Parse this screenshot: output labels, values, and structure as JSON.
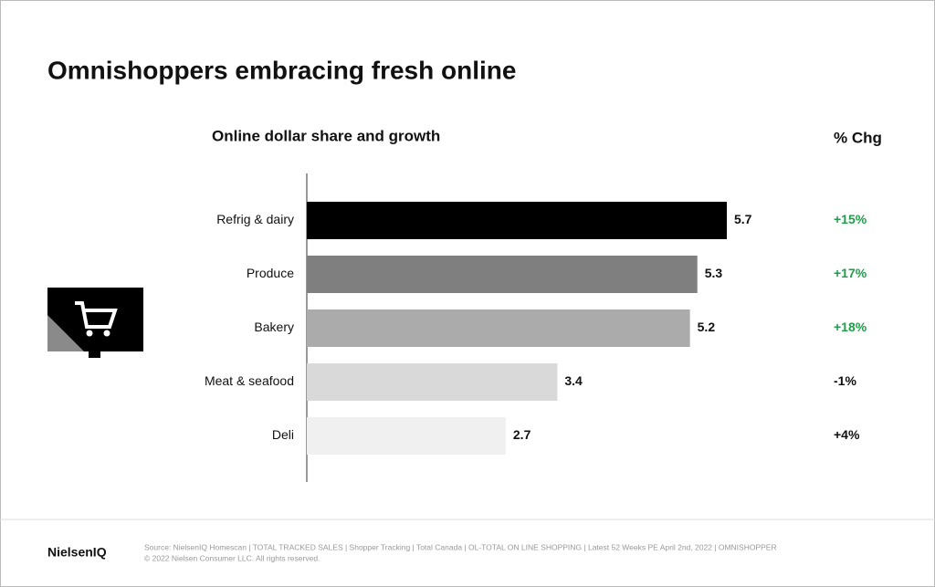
{
  "chart_data": {
    "type": "bar",
    "orientation": "horizontal",
    "title": "Omnishoppers embracing fresh online",
    "subtitle": "Online dollar share and growth",
    "categories": [
      "Refrig & dairy",
      "Produce",
      "Bakery",
      "Meat & seafood",
      "Deli"
    ],
    "values": [
      5.7,
      5.3,
      5.2,
      3.4,
      2.7
    ],
    "colors": [
      "#000000",
      "#7f7f7f",
      "#ababab",
      "#d9d9d9",
      "#f0f0f0"
    ],
    "change": {
      "title": "% Chg",
      "values": [
        15,
        17,
        18,
        -1,
        4
      ],
      "value_labels": [
        "+15%",
        "+17%",
        "+18%",
        "-1%",
        "+4%"
      ],
      "colors": [
        "#1e9e4a",
        "#1e9e4a",
        "#1e9e4a",
        "#111111",
        "#111111"
      ]
    }
  },
  "footer": {
    "logo": "NielsenIQ",
    "source": "Source: NielsenIQ Homescan | TOTAL TRACKED SALES | Shopper Tracking | Total Canada | OL-TOTAL ON LINE SHOPPING | Latest 52 Weeks PE April 2nd, 2022 | OMNISHOPPER",
    "copyright": "© 2022 Nielsen Consumer LLC. All rights reserved."
  }
}
